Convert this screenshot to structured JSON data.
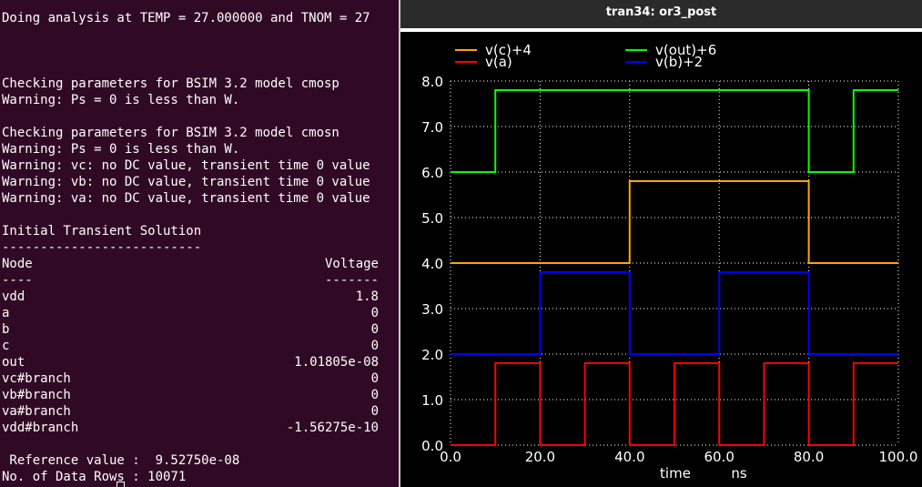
{
  "terminal": {
    "header": "Doing analysis at TEMP = 27.000000 and TNOM = 27",
    "lines": [
      {
        "row": 4,
        "text": "Checking parameters for BSIM 3.2 model cmosp"
      },
      {
        "row": 5,
        "text": "Warning: Ps = 0 is less than W."
      },
      {
        "row": 7,
        "text": "Checking parameters for BSIM 3.2 model cmosn"
      },
      {
        "row": 8,
        "text": "Warning: Ps = 0 is less than W."
      },
      {
        "row": 9,
        "text": "Warning: vc: no DC value, transient time 0 value"
      },
      {
        "row": 10,
        "text": "Warning: vb: no DC value, transient time 0 value"
      },
      {
        "row": 11,
        "text": "Warning: va: no DC value, transient time 0 value"
      },
      {
        "row": 13,
        "text": "Initial Transient Solution"
      },
      {
        "row": 14,
        "text": "--------------------------"
      }
    ],
    "table_header": {
      "node": "Node",
      "voltage": "Voltage"
    },
    "table_rule": {
      "node": "----",
      "voltage": "-------"
    },
    "rows": [
      {
        "node": "vdd",
        "value": "1.8"
      },
      {
        "node": "a",
        "value": "0"
      },
      {
        "node": "b",
        "value": "0"
      },
      {
        "node": "c",
        "value": "0"
      },
      {
        "node": "out",
        "value": "1.01805e-08"
      },
      {
        "node": "vc#branch",
        "value": "0"
      },
      {
        "node": "vb#branch",
        "value": "0"
      },
      {
        "node": "va#branch",
        "value": "0"
      },
      {
        "node": "vdd#branch",
        "value": "-1.56275e-10"
      }
    ],
    "reference_line": " Reference value :  9.52750e-08",
    "data_rows_line": "No. of Data Rows : 10071"
  },
  "plot_window": {
    "title": "tran34: or3_post",
    "background": "#000000",
    "grid_color": "#ffffff"
  },
  "chart_data": {
    "type": "line",
    "xlabel": "time",
    "xunit": "ns",
    "xlim": [
      0,
      100
    ],
    "ylim": [
      0,
      8
    ],
    "x_ticks": [
      "0.0",
      "20.0",
      "40.0",
      "60.0",
      "80.0",
      "100.0"
    ],
    "y_ticks": [
      "0.0",
      "1.0",
      "2.0",
      "3.0",
      "4.0",
      "5.0",
      "6.0",
      "7.0",
      "8.0"
    ],
    "grid": true,
    "legend_position": "top",
    "series": [
      {
        "name": "v(c)+4",
        "color": "#ffa500",
        "points": [
          [
            0,
            4
          ],
          [
            40,
            4
          ],
          [
            40,
            5.8
          ],
          [
            80,
            5.8
          ],
          [
            80,
            4
          ],
          [
            100,
            4
          ]
        ]
      },
      {
        "name": "v(a)",
        "color": "#ff0000",
        "points": [
          [
            0,
            0
          ],
          [
            10,
            0
          ],
          [
            10,
            1.8
          ],
          [
            20,
            1.8
          ],
          [
            20,
            0
          ],
          [
            30,
            0
          ],
          [
            30,
            1.8
          ],
          [
            40,
            1.8
          ],
          [
            40,
            0
          ],
          [
            50,
            0
          ],
          [
            50,
            1.8
          ],
          [
            60,
            1.8
          ],
          [
            60,
            0
          ],
          [
            70,
            0
          ],
          [
            70,
            1.8
          ],
          [
            80,
            1.8
          ],
          [
            80,
            0
          ],
          [
            90,
            0
          ],
          [
            90,
            1.8
          ],
          [
            100,
            1.8
          ]
        ]
      },
      {
        "name": "v(out)+6",
        "color": "#00ff00",
        "points": [
          [
            0,
            6
          ],
          [
            10,
            6
          ],
          [
            10,
            7.8
          ],
          [
            80,
            7.8
          ],
          [
            80,
            6
          ],
          [
            90,
            6
          ],
          [
            90,
            7.8
          ],
          [
            100,
            7.8
          ]
        ]
      },
      {
        "name": "v(b)+2",
        "color": "#0000ff",
        "points": [
          [
            0,
            2
          ],
          [
            20,
            2
          ],
          [
            20,
            3.8
          ],
          [
            40,
            3.8
          ],
          [
            40,
            2
          ],
          [
            60,
            2
          ],
          [
            60,
            3.8
          ],
          [
            80,
            3.8
          ],
          [
            80,
            2
          ],
          [
            100,
            2
          ]
        ]
      }
    ]
  }
}
